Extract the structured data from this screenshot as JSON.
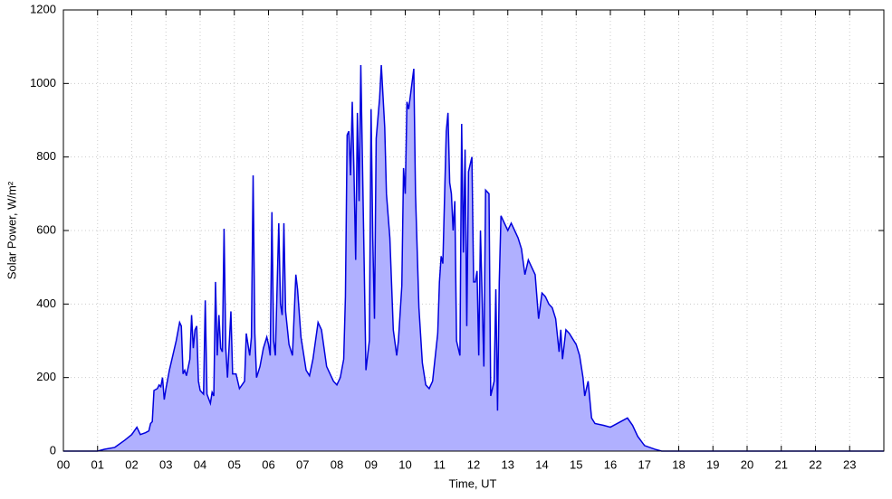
{
  "chart_data": {
    "type": "area",
    "xlabel": "Time, UT",
    "ylabel": "Solar Power, W/m²",
    "xlim": [
      0,
      24
    ],
    "ylim": [
      0,
      1200
    ],
    "xticks": [
      {
        "value": 0,
        "label": "00"
      },
      {
        "value": 1,
        "label": "01"
      },
      {
        "value": 2,
        "label": "02"
      },
      {
        "value": 3,
        "label": "03"
      },
      {
        "value": 4,
        "label": "04"
      },
      {
        "value": 5,
        "label": "05"
      },
      {
        "value": 6,
        "label": "06"
      },
      {
        "value": 7,
        "label": "07"
      },
      {
        "value": 8,
        "label": "08"
      },
      {
        "value": 9,
        "label": "09"
      },
      {
        "value": 10,
        "label": "10"
      },
      {
        "value": 11,
        "label": "11"
      },
      {
        "value": 12,
        "label": "12"
      },
      {
        "value": 13,
        "label": "13"
      },
      {
        "value": 14,
        "label": "14"
      },
      {
        "value": 15,
        "label": "15"
      },
      {
        "value": 16,
        "label": "16"
      },
      {
        "value": 17,
        "label": "17"
      },
      {
        "value": 18,
        "label": "18"
      },
      {
        "value": 19,
        "label": "19"
      },
      {
        "value": 20,
        "label": "20"
      },
      {
        "value": 21,
        "label": "21"
      },
      {
        "value": 22,
        "label": "22"
      },
      {
        "value": 23,
        "label": "23"
      }
    ],
    "yticks": [
      0,
      200,
      400,
      600,
      800,
      1000,
      1200
    ],
    "grid": true,
    "color": "#0000dd",
    "fill": "#b0b0ff",
    "x": [
      0,
      1.0,
      1.2,
      1.5,
      1.8,
      2.0,
      2.15,
      2.25,
      2.4,
      2.5,
      2.55,
      2.6,
      2.65,
      2.75,
      2.8,
      2.85,
      2.9,
      2.95,
      3.0,
      3.1,
      3.2,
      3.3,
      3.4,
      3.45,
      3.5,
      3.55,
      3.6,
      3.7,
      3.75,
      3.8,
      3.85,
      3.9,
      3.95,
      4.0,
      4.1,
      4.15,
      4.2,
      4.3,
      4.35,
      4.4,
      4.45,
      4.5,
      4.55,
      4.6,
      4.65,
      4.7,
      4.75,
      4.8,
      4.9,
      4.95,
      5.05,
      5.15,
      5.3,
      5.35,
      5.45,
      5.5,
      5.55,
      5.6,
      5.65,
      5.75,
      5.85,
      5.95,
      6.0,
      6.05,
      6.1,
      6.15,
      6.2,
      6.3,
      6.35,
      6.4,
      6.45,
      6.5,
      6.6,
      6.7,
      6.8,
      6.85,
      6.95,
      7.1,
      7.2,
      7.3,
      7.45,
      7.55,
      7.7,
      7.9,
      8.0,
      8.1,
      8.2,
      8.25,
      8.3,
      8.35,
      8.4,
      8.45,
      8.5,
      8.55,
      8.6,
      8.65,
      8.7,
      8.8,
      8.85,
      8.95,
      9.0,
      9.05,
      9.1,
      9.15,
      9.25,
      9.3,
      9.4,
      9.45,
      9.55,
      9.65,
      9.75,
      9.8,
      9.9,
      9.95,
      10.0,
      10.05,
      10.1,
      10.25,
      10.3,
      10.4,
      10.5,
      10.6,
      10.7,
      10.8,
      10.95,
      11.0,
      11.05,
      11.1,
      11.2,
      11.25,
      11.3,
      11.35,
      11.4,
      11.45,
      11.5,
      11.6,
      11.65,
      11.7,
      11.75,
      11.8,
      11.85,
      11.95,
      12.0,
      12.05,
      12.1,
      12.15,
      12.2,
      12.3,
      12.35,
      12.45,
      12.5,
      12.6,
      12.65,
      12.7,
      12.75,
      12.8,
      12.9,
      13.0,
      13.1,
      13.2,
      13.3,
      13.4,
      13.5,
      13.6,
      13.7,
      13.8,
      13.9,
      14.0,
      14.1,
      14.2,
      14.3,
      14.4,
      14.5,
      14.55,
      14.6,
      14.7,
      14.8,
      15.0,
      15.1,
      15.2,
      15.25,
      15.35,
      15.45,
      15.55,
      15.8,
      16.0,
      16.3,
      16.5,
      16.65,
      16.8,
      17.0,
      17.3,
      17.5,
      24
    ],
    "values": [
      0,
      0,
      5,
      10,
      30,
      45,
      65,
      45,
      50,
      55,
      75,
      80,
      165,
      170,
      180,
      175,
      200,
      140,
      170,
      220,
      260,
      300,
      350,
      340,
      210,
      220,
      205,
      250,
      370,
      280,
      330,
      340,
      190,
      165,
      155,
      410,
      155,
      130,
      160,
      150,
      460,
      260,
      370,
      280,
      270,
      605,
      280,
      200,
      380,
      210,
      210,
      170,
      190,
      320,
      260,
      310,
      750,
      320,
      200,
      230,
      280,
      310,
      290,
      260,
      650,
      300,
      260,
      620,
      400,
      370,
      620,
      380,
      290,
      260,
      480,
      440,
      310,
      220,
      205,
      250,
      350,
      330,
      230,
      190,
      180,
      200,
      250,
      420,
      860,
      870,
      750,
      950,
      760,
      520,
      920,
      680,
      1050,
      500,
      220,
      300,
      930,
      580,
      360,
      850,
      960,
      1050,
      880,
      700,
      580,
      330,
      260,
      300,
      450,
      770,
      700,
      950,
      930,
      1040,
      700,
      390,
      240,
      180,
      170,
      190,
      320,
      460,
      530,
      510,
      870,
      920,
      730,
      700,
      600,
      680,
      300,
      260,
      890,
      540,
      820,
      340,
      760,
      800,
      460,
      460,
      490,
      260,
      600,
      230,
      710,
      700,
      150,
      190,
      440,
      110,
      460,
      640,
      620,
      600,
      620,
      600,
      580,
      550,
      480,
      520,
      500,
      480,
      360,
      430,
      420,
      400,
      390,
      360,
      270,
      330,
      250,
      330,
      320,
      290,
      260,
      200,
      150,
      190,
      90,
      75,
      70,
      65,
      80,
      90,
      70,
      40,
      15,
      5,
      0,
      0
    ]
  }
}
